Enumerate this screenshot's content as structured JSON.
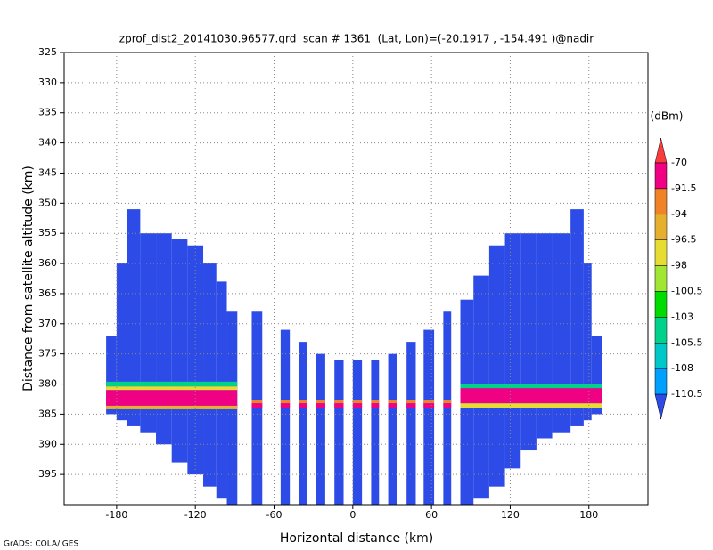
{
  "chart_data": {
    "type": "profile",
    "title": "zprof_dist2_20141030.96577.grd  scan # 1361  (Lat, Lon)=(-20.1917 , -154.491 )@nadir",
    "x_label": "Horizontal distance (km)",
    "y_label": "Distance from satellite altitude (km)",
    "footer": "GrADS: COLA/IGES",
    "xlim": [
      -220,
      225
    ],
    "ylim": [
      325,
      400
    ],
    "y_inverted": true,
    "xticks": [
      -180,
      -120,
      -60,
      0,
      60,
      120,
      180
    ],
    "yticks": [
      325,
      330,
      335,
      340,
      345,
      350,
      355,
      360,
      365,
      370,
      375,
      380,
      385,
      390,
      395
    ],
    "grid": true,
    "fill_color": "#2d4be6",
    "columns": [
      {
        "x0": -188,
        "x1": -180,
        "top": 372,
        "bottom": 385
      },
      {
        "x0": -180,
        "x1": -172,
        "top": 360,
        "bottom": 386
      },
      {
        "x0": -172,
        "x1": -162,
        "top": 351,
        "bottom": 387
      },
      {
        "x0": -162,
        "x1": -150,
        "top": 355,
        "bottom": 388
      },
      {
        "x0": -150,
        "x1": -138,
        "top": 355,
        "bottom": 390
      },
      {
        "x0": -138,
        "x1": -126,
        "top": 356,
        "bottom": 393
      },
      {
        "x0": -126,
        "x1": -114,
        "top": 357,
        "bottom": 395
      },
      {
        "x0": -114,
        "x1": -104,
        "top": 360,
        "bottom": 397
      },
      {
        "x0": -104,
        "x1": -96,
        "top": 363,
        "bottom": 399
      },
      {
        "x0": -96,
        "x1": -88,
        "top": 368,
        "bottom": 400
      },
      {
        "x0": -77,
        "x1": -69,
        "top": 368,
        "bottom": 400
      },
      {
        "x0": -55,
        "x1": -48,
        "top": 371,
        "bottom": 400
      },
      {
        "x0": -41,
        "x1": -35,
        "top": 373,
        "bottom": 400
      },
      {
        "x0": -28,
        "x1": -21,
        "top": 375,
        "bottom": 400
      },
      {
        "x0": -14,
        "x1": -7,
        "top": 376,
        "bottom": 400
      },
      {
        "x0": 0,
        "x1": 7,
        "top": 376,
        "bottom": 400
      },
      {
        "x0": 14,
        "x1": 20,
        "top": 376,
        "bottom": 400
      },
      {
        "x0": 27,
        "x1": 34,
        "top": 375,
        "bottom": 400
      },
      {
        "x0": 41,
        "x1": 48,
        "top": 373,
        "bottom": 400
      },
      {
        "x0": 54,
        "x1": 62,
        "top": 371,
        "bottom": 400
      },
      {
        "x0": 69,
        "x1": 75,
        "top": 368,
        "bottom": 400
      },
      {
        "x0": 82,
        "x1": 92,
        "top": 366,
        "bottom": 400
      },
      {
        "x0": 92,
        "x1": 104,
        "top": 362,
        "bottom": 399
      },
      {
        "x0": 104,
        "x1": 116,
        "top": 357,
        "bottom": 397
      },
      {
        "x0": 116,
        "x1": 128,
        "top": 355,
        "bottom": 394
      },
      {
        "x0": 128,
        "x1": 140,
        "top": 355,
        "bottom": 391
      },
      {
        "x0": 140,
        "x1": 152,
        "top": 355,
        "bottom": 389
      },
      {
        "x0": 152,
        "x1": 166,
        "top": 355,
        "bottom": 388
      },
      {
        "x0": 166,
        "x1": 176,
        "top": 351,
        "bottom": 387
      },
      {
        "x0": 176,
        "x1": 182,
        "top": 360,
        "bottom": 386
      },
      {
        "x0": 182,
        "x1": 190,
        "top": 372,
        "bottom": 385
      }
    ],
    "layers": [
      {
        "x0": -190,
        "x1": -88,
        "top": 379.6,
        "bottom": 380.4,
        "color": "#00d28c"
      },
      {
        "x0": -190,
        "x1": -88,
        "top": 380.4,
        "bottom": 381,
        "color": "#e6dc32"
      },
      {
        "x0": -190,
        "x1": -88,
        "top": 381,
        "bottom": 383.6,
        "color": "#f00082"
      },
      {
        "x0": -190,
        "x1": -88,
        "top": 383.6,
        "bottom": 384.2,
        "color": "#e6af2d"
      },
      {
        "x0": -88,
        "x1": 82,
        "top": 382.6,
        "bottom": 383.2,
        "color": "#f08228"
      },
      {
        "x0": -88,
        "x1": 82,
        "top": 383.2,
        "bottom": 383.9,
        "color": "#f00082"
      },
      {
        "x0": 82,
        "x1": 190,
        "top": 380,
        "bottom": 380.7,
        "color": "#00d28c"
      },
      {
        "x0": 82,
        "x1": 190,
        "top": 380.7,
        "bottom": 383.2,
        "color": "#f00082"
      },
      {
        "x0": 82,
        "x1": 190,
        "top": 383.2,
        "bottom": 384,
        "color": "#e6dc32"
      }
    ],
    "colorbar": {
      "units": "(dBm)",
      "levels": [
        -70,
        -91.5,
        -94,
        -96.5,
        -98,
        -100.5,
        -103,
        -105.5,
        -108,
        -110.5
      ],
      "colors": [
        "#fa3c3c",
        "#f00082",
        "#f08228",
        "#e6af2d",
        "#e6dc32",
        "#a0e632",
        "#00dc00",
        "#00d28c",
        "#00c8c8",
        "#00a0ff",
        "#2d4be6"
      ]
    }
  }
}
